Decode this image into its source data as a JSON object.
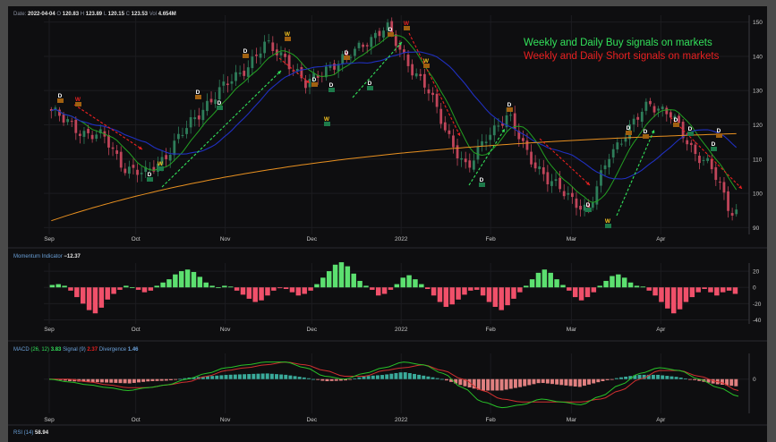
{
  "header": {
    "date_label": "Date",
    "date": "2022-04-04",
    "o_label": "O",
    "o": "120.83",
    "h_label": "H",
    "h": "123.89",
    "l_label": "L",
    "l": "120.15",
    "c_label": "C",
    "c": "123.53",
    "vol_label": "Vol",
    "vol": "4.654M"
  },
  "annotations": {
    "buy": "Weekly and Daily Buy signals on markets",
    "short": "Weekly and Daily Short signals on markets"
  },
  "panels": {
    "momentum": {
      "name": "Momentum Indicator",
      "value": "−12.37"
    },
    "macd": {
      "name": "MACD",
      "params": "(26, 12)",
      "value": "3.83",
      "signal_label": "Signal (9)",
      "signal": "2.37",
      "div_label": "Divergence",
      "div": "1.46"
    },
    "rsi": {
      "name": "RSI (14)",
      "value": "58.94"
    }
  },
  "x_ticks": [
    "Sep",
    "Oct",
    "Nov",
    "Dec",
    "2022",
    "Feb",
    "Mar",
    "Apr"
  ],
  "colors": {
    "up": "#2e7d5a",
    "down": "#c0455a",
    "buy_arrow": "#32e05a",
    "short_arrow": "#e82020",
    "ma_fast": "#23a023",
    "ma_mid": "#2030c0",
    "ma_slow": "#e89020",
    "hist_pos": "#5ce070",
    "hist_neg": "#f0506a",
    "macd_hist_pos": "#3aaa9a",
    "macd_hist_neg": "#e08080"
  },
  "chart_data": [
    {
      "type": "candlestick",
      "title": "",
      "ylim": [
        88,
        152
      ],
      "yticks": [
        90,
        100,
        110,
        120,
        130,
        140,
        150
      ],
      "x": [
        "Sep",
        "Oct",
        "Nov",
        "Dec",
        "2022",
        "Feb",
        "Mar",
        "Apr"
      ],
      "close_path": [
        {
          "x": "2021-08-30",
          "y": 126
        },
        {
          "x": "2021-09-06",
          "y": 121
        },
        {
          "x": "2021-09-13",
          "y": 118
        },
        {
          "x": "2021-09-20",
          "y": 116
        },
        {
          "x": "2021-09-27",
          "y": 108
        },
        {
          "x": "2021-10-04",
          "y": 105
        },
        {
          "x": "2021-10-11",
          "y": 111
        },
        {
          "x": "2021-10-18",
          "y": 118
        },
        {
          "x": "2021-10-25",
          "y": 126
        },
        {
          "x": "2021-11-01",
          "y": 131
        },
        {
          "x": "2021-11-08",
          "y": 137
        },
        {
          "x": "2021-11-15",
          "y": 143
        },
        {
          "x": "2021-11-22",
          "y": 140
        },
        {
          "x": "2021-11-29",
          "y": 131
        },
        {
          "x": "2021-12-06",
          "y": 137
        },
        {
          "x": "2021-12-13",
          "y": 139
        },
        {
          "x": "2021-12-20",
          "y": 145
        },
        {
          "x": "2021-12-27",
          "y": 148
        },
        {
          "x": "2022-01-03",
          "y": 139
        },
        {
          "x": "2022-01-10",
          "y": 130
        },
        {
          "x": "2022-01-17",
          "y": 118
        },
        {
          "x": "2022-01-24",
          "y": 106
        },
        {
          "x": "2022-01-31",
          "y": 118
        },
        {
          "x": "2022-02-07",
          "y": 122
        },
        {
          "x": "2022-02-14",
          "y": 112
        },
        {
          "x": "2022-02-21",
          "y": 103
        },
        {
          "x": "2022-02-28",
          "y": 100
        },
        {
          "x": "2022-03-07",
          "y": 94
        },
        {
          "x": "2022-03-14",
          "y": 112
        },
        {
          "x": "2022-03-21",
          "y": 118
        },
        {
          "x": "2022-03-28",
          "y": 127
        },
        {
          "x": "2022-04-04",
          "y": 123
        },
        {
          "x": "2022-04-11",
          "y": 114
        },
        {
          "x": "2022-04-18",
          "y": 108
        },
        {
          "x": "2022-04-25",
          "y": 95
        }
      ]
    },
    {
      "type": "bar",
      "title": "Momentum Indicator",
      "ylim": [
        -45,
        30
      ],
      "yticks": [
        20,
        0,
        -20,
        -40
      ],
      "values": [
        3,
        4,
        2,
        -4,
        -12,
        -20,
        -28,
        -32,
        -25,
        -15,
        -8,
        -3,
        2,
        0,
        -3,
        -6,
        -4,
        2,
        6,
        10,
        16,
        20,
        22,
        19,
        13,
        6,
        2,
        0,
        2,
        1,
        -4,
        -9,
        -14,
        -18,
        -16,
        -10,
        -4,
        -1,
        -2,
        -6,
        -10,
        -8,
        -4,
        4,
        12,
        20,
        28,
        31,
        26,
        17,
        8,
        2,
        -3,
        -10,
        -8,
        -3,
        4,
        12,
        15,
        10,
        4,
        -2,
        -10,
        -18,
        -24,
        -21,
        -15,
        -9,
        -4,
        -3,
        -10,
        -18,
        -24,
        -28,
        -22,
        -14,
        -6,
        2,
        10,
        18,
        22,
        18,
        10,
        3,
        -4,
        -12,
        -16,
        -12,
        -6,
        2,
        8,
        14,
        16,
        12,
        6,
        2,
        1,
        -4,
        -10,
        -18,
        -26,
        -32,
        -27,
        -18,
        -12,
        -6,
        -2,
        -6,
        -10,
        -6,
        -4,
        -8
      ],
      "series": [
        {
          "name": "Momentum Indicator",
          "value_label": "−12.37"
        }
      ]
    },
    {
      "type": "line",
      "title": "MACD",
      "ylim": [
        -12,
        9
      ],
      "yticks": [
        0
      ],
      "series": [
        {
          "name": "MACD",
          "values": [
            0,
            -1,
            -2,
            -3,
            -4,
            -3,
            -2,
            0,
            2,
            4,
            5,
            6,
            6,
            4,
            1,
            0,
            2,
            4,
            6,
            5,
            2,
            -3,
            -8,
            -10,
            -9,
            -7,
            -8,
            -9,
            -6,
            -2,
            2,
            4,
            3,
            0,
            -3,
            -6
          ]
        },
        {
          "name": "Signal",
          "values": [
            0,
            0,
            -1,
            -2,
            -3,
            -3,
            -2,
            -1,
            1,
            3,
            4,
            5,
            6,
            5,
            3,
            1,
            1,
            3,
            4,
            5,
            3,
            0,
            -4,
            -7,
            -8,
            -8,
            -8,
            -8,
            -7,
            -4,
            0,
            3,
            3,
            1,
            -1,
            -4
          ]
        }
      ]
    }
  ]
}
